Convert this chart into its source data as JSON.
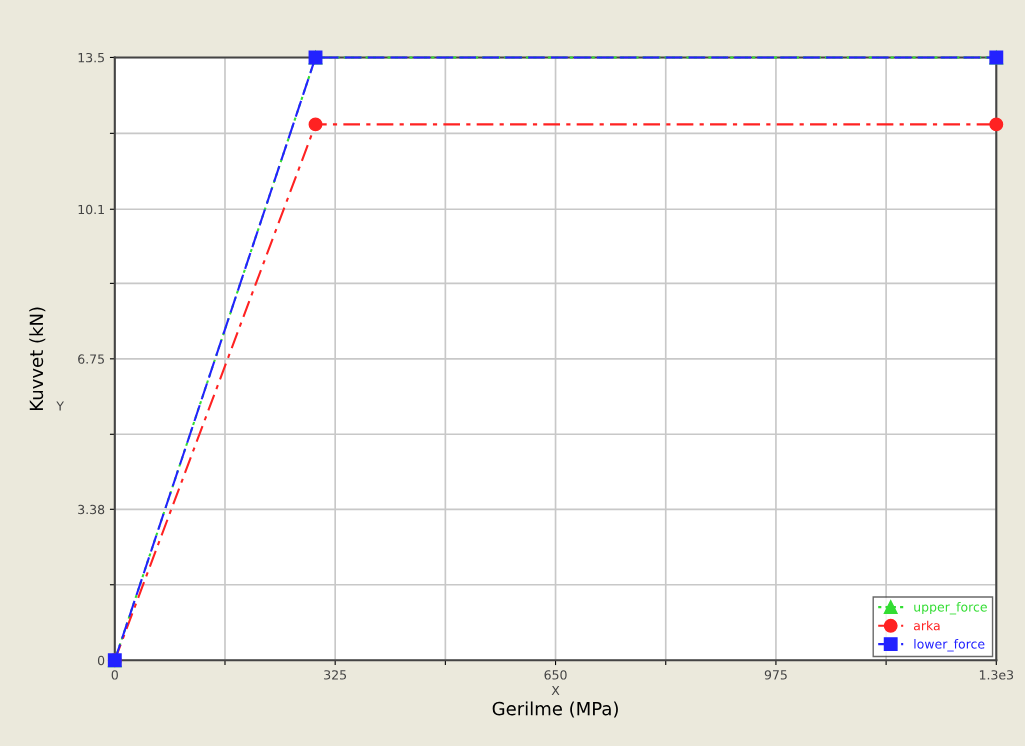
{
  "chart_data": {
    "type": "line",
    "xlabel": "Gerilme (MPa)",
    "ylabel": "Kuvvet (kN)",
    "annotations": [
      "X",
      "Y"
    ],
    "xlim": [
      0,
      1300
    ],
    "ylim": [
      0,
      13.5
    ],
    "xticks": [
      0,
      {
        "value": 162.5,
        "label": null
      },
      325,
      {
        "value": 487.5,
        "label": null
      },
      650,
      {
        "value": 812.5,
        "label": null
      },
      975,
      {
        "value": 1137.5,
        "label": null
      },
      {
        "value": 1300,
        "label": "1.3e3"
      }
    ],
    "yticks": [
      0,
      {
        "value": 1.69,
        "label": null
      },
      3.38,
      {
        "value": 5.06,
        "label": null
      },
      6.75,
      {
        "value": 8.44,
        "label": null
      },
      10.1,
      {
        "value": 11.8,
        "label": null
      },
      13.5
    ],
    "grid": true,
    "legend": "bottom right",
    "series": [
      {
        "name": "upper_force",
        "color": "#33dd33",
        "x": [
          0,
          296,
          1300
        ],
        "values": [
          0,
          13.5,
          13.5
        ],
        "marker": "triangle",
        "line_style": "dotted"
      },
      {
        "name": "arka",
        "color": "#ff2222",
        "x": [
          0,
          296,
          1300
        ],
        "values": [
          0,
          12,
          12
        ],
        "marker": "circle",
        "line_style": "dashdot"
      },
      {
        "name": "lower_force",
        "color": "#2222ff",
        "x": [
          0,
          296,
          1300
        ],
        "values": [
          0,
          13.5,
          13.5
        ],
        "marker": "square",
        "line_style": "dashed"
      }
    ]
  }
}
